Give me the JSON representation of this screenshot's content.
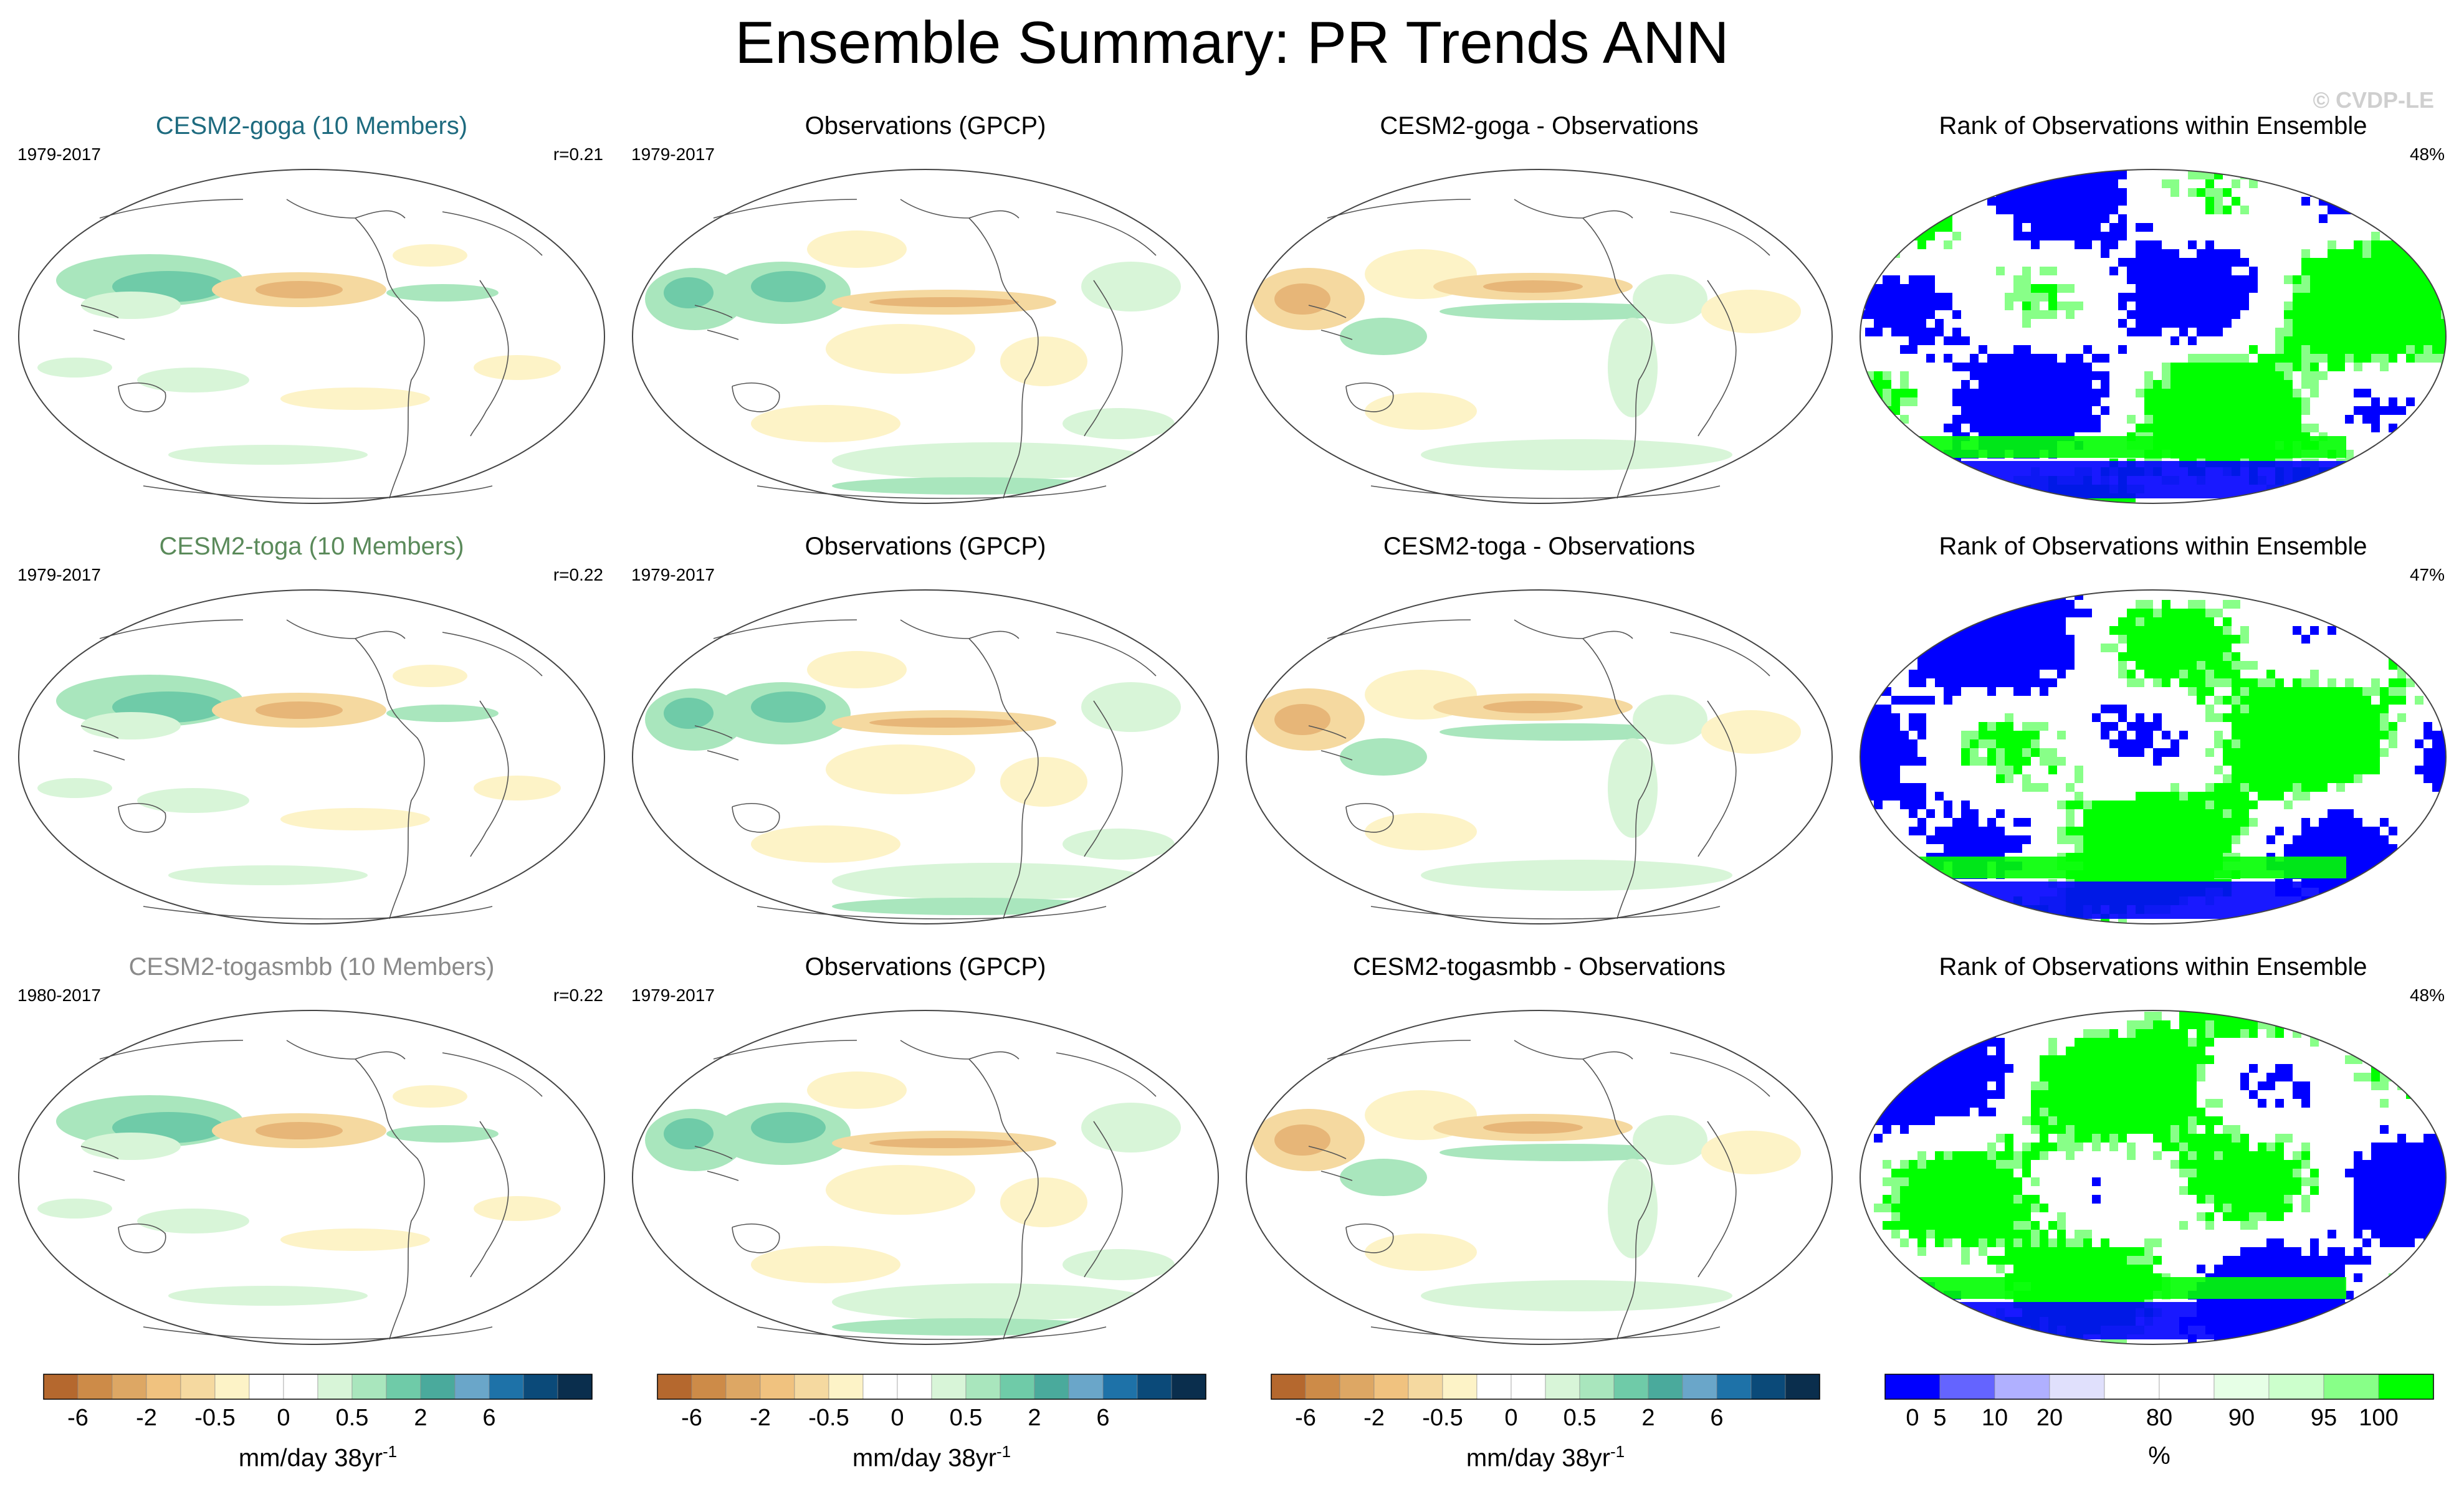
{
  "title": "Ensemble Summary: PR Trends ANN",
  "watermark": "© CVDP-LE",
  "rows": [
    {
      "model": {
        "title": "CESM2-goga (10 Members)",
        "title_color": "#1e6b7f",
        "period": "1979-2017",
        "stat": "r=0.21"
      },
      "obs": {
        "title": "Observations (GPCP)",
        "period": "1979-2017"
      },
      "diff": {
        "title": "CESM2-goga - Observations"
      },
      "rank": {
        "title": "Rank of Observations within Ensemble",
        "stat": "48%"
      }
    },
    {
      "model": {
        "title": "CESM2-toga (10 Members)",
        "title_color": "#5a8a5a",
        "period": "1979-2017",
        "stat": "r=0.22"
      },
      "obs": {
        "title": "Observations (GPCP)",
        "period": "1979-2017"
      },
      "diff": {
        "title": "CESM2-toga - Observations"
      },
      "rank": {
        "title": "Rank of Observations within Ensemble",
        "stat": "47%"
      }
    },
    {
      "model": {
        "title": "CESM2-togasmbb (10 Members)",
        "title_color": "#8a8a8a",
        "period": "1980-2017",
        "stat": "r=0.22"
      },
      "obs": {
        "title": "Observations (GPCP)",
        "period": "1979-2017"
      },
      "diff": {
        "title": "CESM2-togasmbb - Observations"
      },
      "rank": {
        "title": "Rank of Observations within Ensemble",
        "stat": "48%"
      }
    }
  ],
  "colorbar_trend": {
    "colors": [
      "#b5682e",
      "#cd8b48",
      "#dda764",
      "#f0c27f",
      "#f5d9a0",
      "#fdf3c7",
      "#ffffff",
      "#ffffff",
      "#d8f5d8",
      "#a9e6bd",
      "#6fcba8",
      "#4aaa9c",
      "#6aa6c9",
      "#1e72a8",
      "#0b4a79",
      "#0a2e4d"
    ],
    "tick_labels": [
      "-6",
      "-2",
      "-0.5",
      "0",
      "0.5",
      "2",
      "6"
    ],
    "tick_positions": [
      1,
      3,
      5,
      7,
      9,
      11,
      13
    ],
    "unit": "mm/day 38yr",
    "unit_sup": "-1"
  },
  "colorbar_rank": {
    "colors": [
      "#0000ff",
      "#6464ff",
      "#b0b0ff",
      "#e0e0fc",
      "#ffffff",
      "#ffffff",
      "#e6ffe6",
      "#ccffcc",
      "#88ff88",
      "#00ff00"
    ],
    "tick_labels": [
      "0",
      "5",
      "10",
      "20",
      "80",
      "90",
      "95",
      "100"
    ],
    "tick_positions": [
      0.5,
      1,
      2,
      3,
      5,
      6.5,
      8,
      9
    ],
    "unit": "%"
  }
}
